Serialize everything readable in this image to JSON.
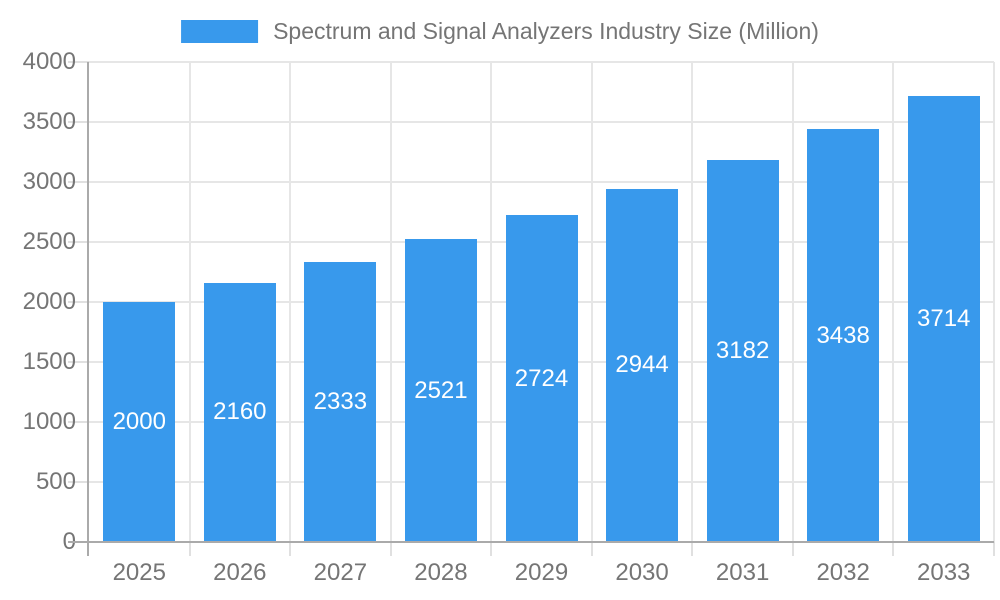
{
  "chart_data": {
    "type": "bar",
    "title": "Spectrum and Signal Analyzers Industry Size (Million)",
    "legend": {
      "label": "Spectrum and Signal Analyzers Industry Size (Million)",
      "position": "top"
    },
    "categories": [
      "2025",
      "2026",
      "2027",
      "2028",
      "2029",
      "2030",
      "2031",
      "2032",
      "2033"
    ],
    "values": [
      2000,
      2160,
      2333,
      2521,
      2724,
      2944,
      3182,
      3438,
      3714
    ],
    "xlabel": "",
    "ylabel": "",
    "ylim": [
      0,
      4000
    ],
    "ytick_step": 500,
    "ytick_labels": [
      "0",
      "500",
      "1000",
      "1500",
      "2000",
      "2500",
      "3000",
      "3500",
      "4000"
    ],
    "grid": true,
    "value_labels_inside_bars": true,
    "colors": {
      "bar": "#3899EC",
      "axis_line": "#AAAAAA",
      "gridline": "#E6E6E6",
      "tick": "#E0E0E0",
      "label_text": "#757575",
      "value_text": "#FFFFFF",
      "background": "#FFFFFF"
    }
  }
}
